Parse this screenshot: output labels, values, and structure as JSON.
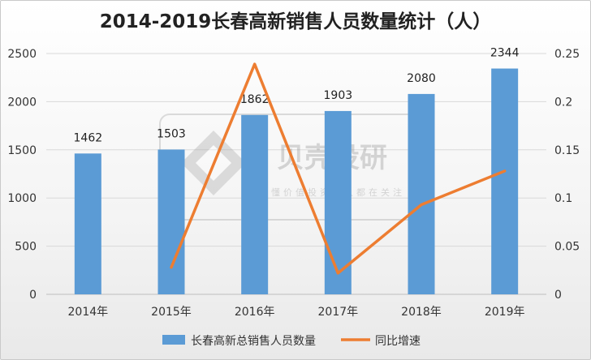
{
  "chart_data": {
    "type": "bar",
    "title": "2014-2019长春高新销售人员数量统计（人）",
    "categories": [
      "2014年",
      "2015年",
      "2016年",
      "2017年",
      "2018年",
      "2019年"
    ],
    "series": [
      {
        "name": "长春高新总销售人员数量",
        "type": "bar",
        "axis": "left",
        "color": "#5b9bd5",
        "values": [
          1462,
          1503,
          1862,
          1903,
          2080,
          2344
        ]
      },
      {
        "name": "同比增速",
        "type": "line",
        "axis": "right",
        "color": "#ed7d31",
        "values": [
          null,
          0.028,
          0.239,
          0.022,
          0.093,
          0.128
        ]
      }
    ],
    "ylim": [
      0,
      2500
    ],
    "y_ticks": [
      "0",
      "500",
      "1000",
      "1500",
      "2000",
      "2500"
    ],
    "y2lim": [
      0,
      0.25
    ],
    "y2_ticks": [
      "0",
      "0.05",
      "0.1",
      "0.15",
      "0.2",
      "0.25"
    ],
    "data_labels": [
      "1462",
      "1503",
      "1862",
      "1903",
      "2080",
      "2344"
    ],
    "grid": true,
    "legend_position": "bottom"
  },
  "watermark": {
    "name": "贝壳投研",
    "slogan": "要懂价值投资的人都在关注"
  }
}
